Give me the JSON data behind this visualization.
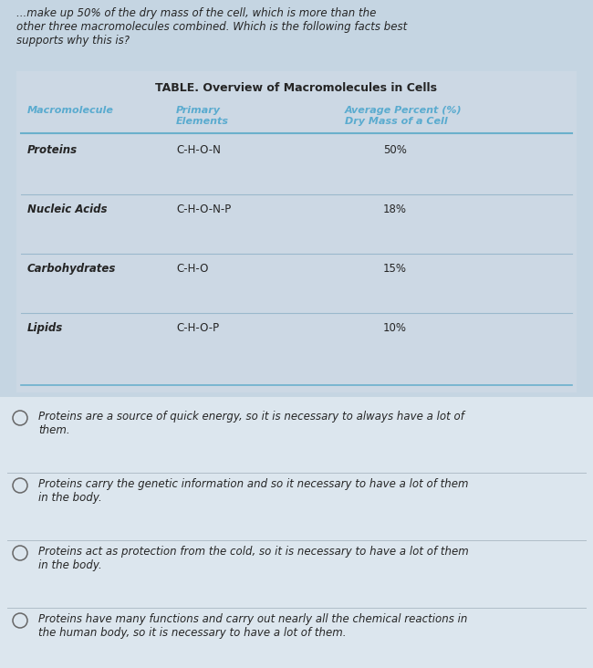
{
  "background_color": "#c5d5e2",
  "intro_text": "...make up 50% of the dry mass of the cell, which is more than the\nother three macromolecules combined. Which is the following facts best\nsupports why this is?",
  "table_title": "TABLE. Overview of Macromolecules in Cells",
  "table_bg": "#ccd8e4",
  "col_headers": [
    "Macromolecule",
    "Primary\nElements",
    "Average Percent (%)\nDry Mass of a Cell"
  ],
  "col_header_color": "#5aabcf",
  "rows": [
    {
      "name": "Proteins",
      "elements": "C-H-O-N",
      "percent": "50%"
    },
    {
      "name": "Nucleic Acids",
      "elements": "C-H-O-N-P",
      "percent": "18%"
    },
    {
      "name": "Carbohydrates",
      "elements": "C-H-O",
      "percent": "15%"
    },
    {
      "name": "Lipids",
      "elements": "C-H-O-P",
      "percent": "10%"
    }
  ],
  "options": [
    "Proteins are a source of quick energy, so it is necessary to always have a lot of\nthem.",
    "Proteins carry the genetic information and so it necessary to have a lot of them\nin the body.",
    "Proteins act as protection from the cold, so it is necessary to have a lot of them\nin the body.",
    "Proteins have many functions and carry out nearly all the chemical reactions in\nthe human body, so it is necessary to have a lot of them."
  ],
  "option_section_bg": "#dce6ee",
  "table_header_line_color": "#6ab0cc",
  "row_line_color": "#9ab8cc",
  "text_color": "#252525",
  "intro_fontsize": 8.5,
  "table_title_fontsize": 9.0,
  "col_header_fontsize": 8.0,
  "row_fontsize": 8.5,
  "option_fontsize": 8.5
}
